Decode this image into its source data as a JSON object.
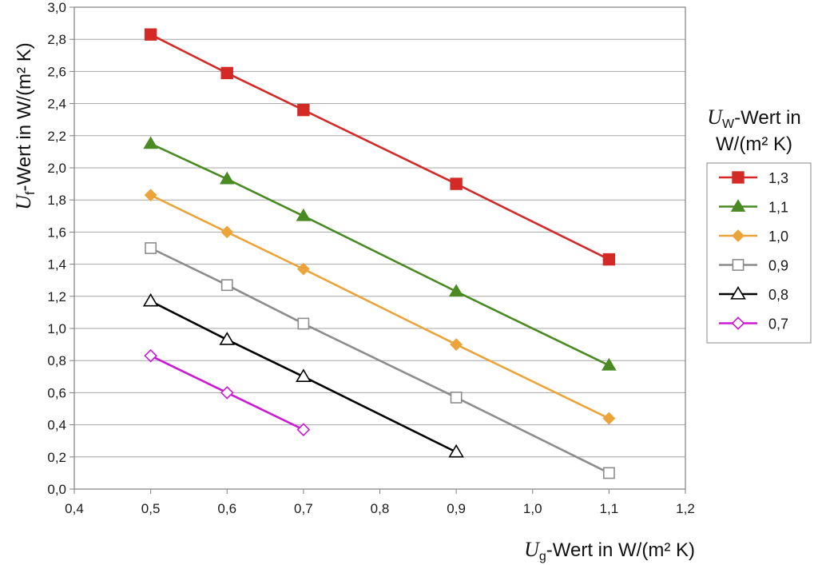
{
  "chart_data": {
    "type": "line",
    "xlabel": {
      "var": "U",
      "sub": "g",
      "rest": "-Wert in W/(m² K)"
    },
    "ylabel": {
      "var": "U",
      "sub": "f",
      "rest": "-Wert in W/(m² K)"
    },
    "xlim": [
      0.4,
      1.2
    ],
    "ylim": [
      0.0,
      3.0
    ],
    "x_ticks": [
      "0,4",
      "0,5",
      "0,6",
      "0,7",
      "0,8",
      "0,9",
      "1,0",
      "1,1",
      "1,2"
    ],
    "y_ticks": [
      "0,0",
      "0,2",
      "0,4",
      "0,6",
      "0,8",
      "1,0",
      "1,2",
      "1,4",
      "1,6",
      "1,8",
      "2,0",
      "2,2",
      "2,4",
      "2,6",
      "2,8",
      "3,0"
    ],
    "grid": "horizontal",
    "legend": {
      "title_var": "U",
      "title_sub": "W",
      "title_rest_line1": "-Wert in",
      "title_line2": "W/(m² K)",
      "placement": "right"
    },
    "series": [
      {
        "name": "1,3",
        "color": "#d42a27",
        "marker": "square-filled",
        "x": [
          0.5,
          0.6,
          0.7,
          0.9,
          1.1
        ],
        "y": [
          2.83,
          2.59,
          2.36,
          1.9,
          1.43
        ]
      },
      {
        "name": "1,1",
        "color": "#4a8a23",
        "marker": "triangle-filled",
        "x": [
          0.5,
          0.6,
          0.7,
          0.9,
          1.1
        ],
        "y": [
          2.15,
          1.93,
          1.7,
          1.23,
          0.77
        ]
      },
      {
        "name": "1,0",
        "color": "#eaa43a",
        "marker": "diamond-filled",
        "x": [
          0.5,
          0.6,
          0.7,
          0.9,
          1.1
        ],
        "y": [
          1.83,
          1.6,
          1.37,
          0.9,
          0.44
        ]
      },
      {
        "name": "0,9",
        "color": "#8c8c8c",
        "marker": "square-open",
        "x": [
          0.5,
          0.6,
          0.7,
          0.9,
          1.1
        ],
        "y": [
          1.5,
          1.27,
          1.03,
          0.57,
          0.1
        ]
      },
      {
        "name": "0,8",
        "color": "#000000",
        "marker": "triangle-open",
        "x": [
          0.5,
          0.6,
          0.7,
          0.9
        ],
        "y": [
          1.17,
          0.93,
          0.7,
          0.23
        ]
      },
      {
        "name": "0,7",
        "color": "#cc18d3",
        "marker": "diamond-open",
        "x": [
          0.5,
          0.6,
          0.7
        ],
        "y": [
          0.83,
          0.6,
          0.37
        ]
      }
    ]
  }
}
